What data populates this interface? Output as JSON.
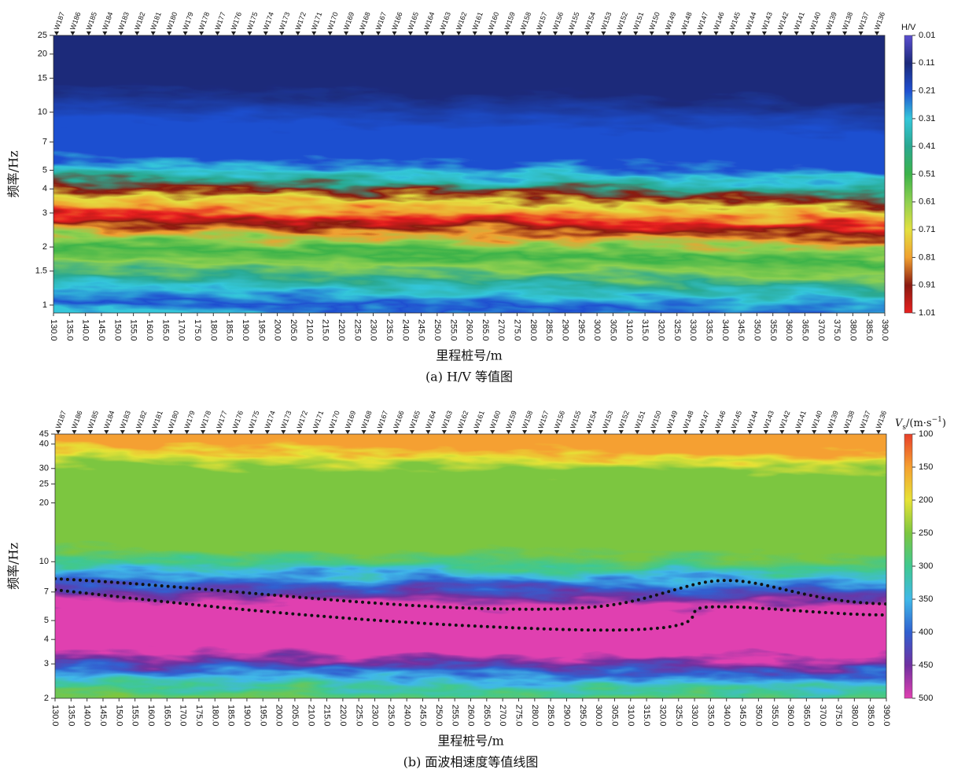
{
  "chart_data": [
    {
      "type": "heatmap",
      "caption": "(a) H/V 等值图",
      "xlabel": "里程桩号/m",
      "ylabel": "频率/Hz",
      "stations": [
        "W187",
        "W186",
        "W185",
        "W184",
        "W183",
        "W182",
        "W181",
        "W180",
        "W179",
        "W178",
        "W177",
        "W176",
        "W175",
        "W174",
        "W173",
        "W172",
        "W171",
        "W170",
        "W169",
        "W168",
        "W167",
        "W166",
        "W165",
        "W164",
        "W163",
        "W162",
        "W161",
        "W160",
        "W159",
        "W158",
        "W157",
        "W156",
        "W155",
        "W154",
        "W153",
        "W152",
        "W151",
        "W150",
        "W149",
        "W148",
        "W147",
        "W146",
        "W145",
        "W144",
        "W143",
        "W142",
        "W141",
        "W140",
        "W139",
        "W138",
        "W137",
        "W136"
      ],
      "xlim": [
        130,
        390
      ],
      "xticks": [
        {
          "value": 130,
          "label": "130.0"
        },
        {
          "value": 135,
          "label": "135.0"
        },
        {
          "value": 140,
          "label": "140.0"
        },
        {
          "value": 145,
          "label": "145.0"
        },
        {
          "value": 150,
          "label": "150.0"
        },
        {
          "value": 155,
          "label": "155.0"
        },
        {
          "value": 160,
          "label": "160.0"
        },
        {
          "value": 165,
          "label": "165.0"
        },
        {
          "value": 170,
          "label": "170.0"
        },
        {
          "value": 175,
          "label": "175.0"
        },
        {
          "value": 180,
          "label": "180.0"
        },
        {
          "value": 185,
          "label": "185.0"
        },
        {
          "value": 190,
          "label": "190.0"
        },
        {
          "value": 195,
          "label": "195.0"
        },
        {
          "value": 200,
          "label": "200.0"
        },
        {
          "value": 205,
          "label": "205.0"
        },
        {
          "value": 210,
          "label": "210.0"
        },
        {
          "value": 215,
          "label": "215.0"
        },
        {
          "value": 220,
          "label": "220.0"
        },
        {
          "value": 225,
          "label": "225.0"
        },
        {
          "value": 230,
          "label": "230.0"
        },
        {
          "value": 235,
          "label": "235.0"
        },
        {
          "value": 240,
          "label": "240.0"
        },
        {
          "value": 245,
          "label": "245.0"
        },
        {
          "value": 250,
          "label": "250.0"
        },
        {
          "value": 255,
          "label": "255.0"
        },
        {
          "value": 260,
          "label": "260.0"
        },
        {
          "value": 265,
          "label": "265.0"
        },
        {
          "value": 270,
          "label": "270.0"
        },
        {
          "value": 275,
          "label": "275.0"
        },
        {
          "value": 280,
          "label": "280.0"
        },
        {
          "value": 285,
          "label": "285.0"
        },
        {
          "value": 290,
          "label": "290.0"
        },
        {
          "value": 295,
          "label": "295.0"
        },
        {
          "value": 300,
          "label": "300.0"
        },
        {
          "value": 305,
          "label": "305.0"
        },
        {
          "value": 310,
          "label": "310.0"
        },
        {
          "value": 315,
          "label": "315.0"
        },
        {
          "value": 320,
          "label": "320.0"
        },
        {
          "value": 325,
          "label": "325.0"
        },
        {
          "value": 330,
          "label": "330.0"
        },
        {
          "value": 335,
          "label": "335.0"
        },
        {
          "value": 340,
          "label": "340.0"
        },
        {
          "value": 345,
          "label": "345.0"
        },
        {
          "value": 350,
          "label": "350.0"
        },
        {
          "value": 355,
          "label": "355.0"
        },
        {
          "value": 360,
          "label": "360.0"
        },
        {
          "value": 365,
          "label": "365.0"
        },
        {
          "value": 370,
          "label": "370.0"
        },
        {
          "value": 375,
          "label": "375.0"
        },
        {
          "value": 380,
          "label": "380.0"
        },
        {
          "value": 385,
          "label": "385.0"
        },
        {
          "value": 390,
          "label": "390.0"
        }
      ],
      "ylim": [
        0.91,
        25
      ],
      "ylog": true,
      "yticks": [
        1,
        1.5,
        2,
        3,
        4,
        5,
        7,
        10,
        15,
        20,
        25
      ],
      "colorbar": {
        "label": "H/V",
        "clim": [
          0.01,
          1.01
        ],
        "ticks": [
          0.01,
          0.11,
          0.21,
          0.31,
          0.41,
          0.51,
          0.61,
          0.71,
          0.81,
          0.91,
          1.01
        ],
        "colors": [
          "#5b4fd0",
          "#1c2a7a",
          "#1f4fd0",
          "#34c6da",
          "#2aa890",
          "#3cb34a",
          "#8fd050",
          "#e3e040",
          "#f0a030",
          "#8a1a10",
          "#e82020"
        ]
      }
    },
    {
      "type": "heatmap",
      "caption": "(b) 面波相速度等值线图",
      "xlabel": "里程桩号/m",
      "ylabel": "频率/Hz",
      "stations": [
        "W187",
        "W186",
        "W185",
        "W184",
        "W183",
        "W182",
        "W181",
        "W180",
        "W179",
        "W178",
        "W177",
        "W176",
        "W175",
        "W174",
        "W173",
        "W172",
        "W171",
        "W170",
        "W169",
        "W168",
        "W167",
        "W166",
        "W165",
        "W164",
        "W163",
        "W162",
        "W161",
        "W160",
        "W159",
        "W158",
        "W157",
        "W156",
        "W155",
        "W154",
        "W153",
        "W152",
        "W151",
        "W150",
        "W149",
        "W148",
        "W147",
        "W146",
        "W145",
        "W144",
        "W143",
        "W142",
        "W141",
        "W140",
        "W139",
        "W138",
        "W137",
        "W136"
      ],
      "xlim": [
        130,
        390
      ],
      "xticks": [
        {
          "value": 130,
          "label": "130.0"
        },
        {
          "value": 135,
          "label": "135.0"
        },
        {
          "value": 140,
          "label": "140.0"
        },
        {
          "value": 145,
          "label": "145.0"
        },
        {
          "value": 150,
          "label": "150.0"
        },
        {
          "value": 155,
          "label": "155.0"
        },
        {
          "value": 160,
          "label": "160.0"
        },
        {
          "value": 165,
          "label": "165.0"
        },
        {
          "value": 170,
          "label": "170.0"
        },
        {
          "value": 175,
          "label": "175.0"
        },
        {
          "value": 180,
          "label": "180.0"
        },
        {
          "value": 185,
          "label": "185.0"
        },
        {
          "value": 190,
          "label": "190.0"
        },
        {
          "value": 195,
          "label": "195.0"
        },
        {
          "value": 200,
          "label": "200.0"
        },
        {
          "value": 205,
          "label": "205.0"
        },
        {
          "value": 210,
          "label": "210.0"
        },
        {
          "value": 215,
          "label": "215.0"
        },
        {
          "value": 220,
          "label": "220.0"
        },
        {
          "value": 225,
          "label": "225.0"
        },
        {
          "value": 230,
          "label": "230.0"
        },
        {
          "value": 235,
          "label": "235.0"
        },
        {
          "value": 240,
          "label": "240.0"
        },
        {
          "value": 245,
          "label": "245.0"
        },
        {
          "value": 250,
          "label": "250.0"
        },
        {
          "value": 255,
          "label": "255.0"
        },
        {
          "value": 260,
          "label": "260.0"
        },
        {
          "value": 265,
          "label": "265.0"
        },
        {
          "value": 270,
          "label": "270.0"
        },
        {
          "value": 275,
          "label": "275.0"
        },
        {
          "value": 280,
          "label": "280.0"
        },
        {
          "value": 285,
          "label": "285.0"
        },
        {
          "value": 290,
          "label": "290.0"
        },
        {
          "value": 295,
          "label": "295.0"
        },
        {
          "value": 300,
          "label": "300.0"
        },
        {
          "value": 305,
          "label": "305.0"
        },
        {
          "value": 310,
          "label": "310.0"
        },
        {
          "value": 315,
          "label": "315.0"
        },
        {
          "value": 320,
          "label": "320.0"
        },
        {
          "value": 325,
          "label": "325.0"
        },
        {
          "value": 330,
          "label": "330.0"
        },
        {
          "value": 335,
          "label": "335.0"
        },
        {
          "value": 340,
          "label": "340.0"
        },
        {
          "value": 345,
          "label": "345.0"
        },
        {
          "value": 350,
          "label": "350.0"
        },
        {
          "value": 355,
          "label": "355.0"
        },
        {
          "value": 360,
          "label": "360.0"
        },
        {
          "value": 365,
          "label": "365.0"
        },
        {
          "value": 370,
          "label": "370.0"
        },
        {
          "value": 375,
          "label": "375.0"
        },
        {
          "value": 380,
          "label": "380.0"
        },
        {
          "value": 385,
          "label": "385.0"
        },
        {
          "value": 390,
          "label": "390.0"
        }
      ],
      "ylim": [
        2,
        45
      ],
      "ylog": true,
      "yticks": [
        2,
        3,
        4,
        5,
        7,
        10,
        20,
        25,
        30,
        40,
        45
      ],
      "colorbar": {
        "label_parts": [
          "V",
          "s",
          "/(m·s",
          "−1",
          ")"
        ],
        "clim": [
          100,
          500
        ],
        "ticks": [
          100,
          150,
          200,
          250,
          300,
          350,
          400,
          450,
          500
        ],
        "colors": [
          "#e8402a",
          "#f5a030",
          "#e6e236",
          "#7cc640",
          "#40c890",
          "#40b8e8",
          "#3060d0",
          "#7030a0",
          "#e040b0"
        ]
      }
    }
  ]
}
